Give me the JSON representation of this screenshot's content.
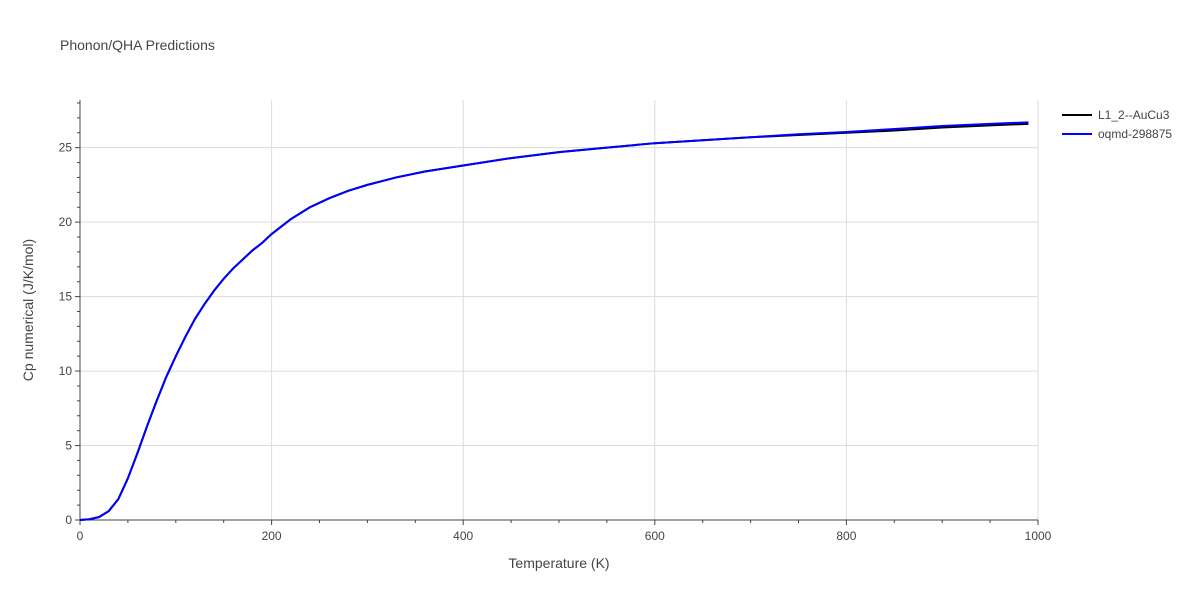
{
  "chart_data": {
    "type": "line",
    "title": "Phonon/QHA Predictions",
    "xlabel": "Temperature (K)",
    "ylabel": "Cp numerical (J/K/mol)",
    "xlim": [
      0,
      1000
    ],
    "ylim": [
      0,
      28.2
    ],
    "x_ticks": [
      0,
      200,
      400,
      600,
      800,
      1000
    ],
    "y_ticks": [
      0,
      5,
      10,
      15,
      20,
      25
    ],
    "grid": true,
    "legend_position": "top-right",
    "series": [
      {
        "name": "L1_2--AuCu3",
        "color": "#000000",
        "x": [
          0,
          10,
          20,
          30,
          40,
          50,
          60,
          70,
          80,
          90,
          100,
          110,
          120,
          130,
          140,
          150,
          160,
          170,
          180,
          190,
          200,
          220,
          240,
          260,
          280,
          300,
          330,
          360,
          400,
          450,
          500,
          550,
          600,
          650,
          700,
          750,
          800,
          850,
          900,
          950,
          990
        ],
        "y": [
          0,
          0.05,
          0.2,
          0.6,
          1.4,
          2.8,
          4.5,
          6.3,
          8.0,
          9.6,
          11.0,
          12.3,
          13.5,
          14.5,
          15.4,
          16.2,
          16.9,
          17.5,
          18.1,
          18.6,
          19.2,
          20.2,
          21.0,
          21.6,
          22.1,
          22.5,
          23.0,
          23.4,
          23.8,
          24.3,
          24.7,
          25.0,
          25.3,
          25.5,
          25.7,
          25.85,
          26.0,
          26.15,
          26.35,
          26.5,
          26.6
        ]
      },
      {
        "name": "oqmd-298875",
        "color": "#0000ff",
        "x": [
          0,
          10,
          20,
          30,
          40,
          50,
          60,
          70,
          80,
          90,
          100,
          110,
          120,
          130,
          140,
          150,
          160,
          170,
          180,
          190,
          200,
          220,
          240,
          260,
          280,
          300,
          330,
          360,
          400,
          450,
          500,
          550,
          600,
          650,
          700,
          750,
          800,
          850,
          900,
          950,
          990
        ],
        "y": [
          0,
          0.05,
          0.2,
          0.6,
          1.4,
          2.8,
          4.5,
          6.3,
          8.0,
          9.6,
          11.0,
          12.3,
          13.5,
          14.5,
          15.4,
          16.2,
          16.9,
          17.5,
          18.1,
          18.6,
          19.2,
          20.2,
          21.0,
          21.6,
          22.1,
          22.5,
          23.0,
          23.4,
          23.8,
          24.3,
          24.7,
          25.0,
          25.3,
          25.5,
          25.7,
          25.9,
          26.05,
          26.25,
          26.45,
          26.6,
          26.7
        ]
      }
    ]
  }
}
